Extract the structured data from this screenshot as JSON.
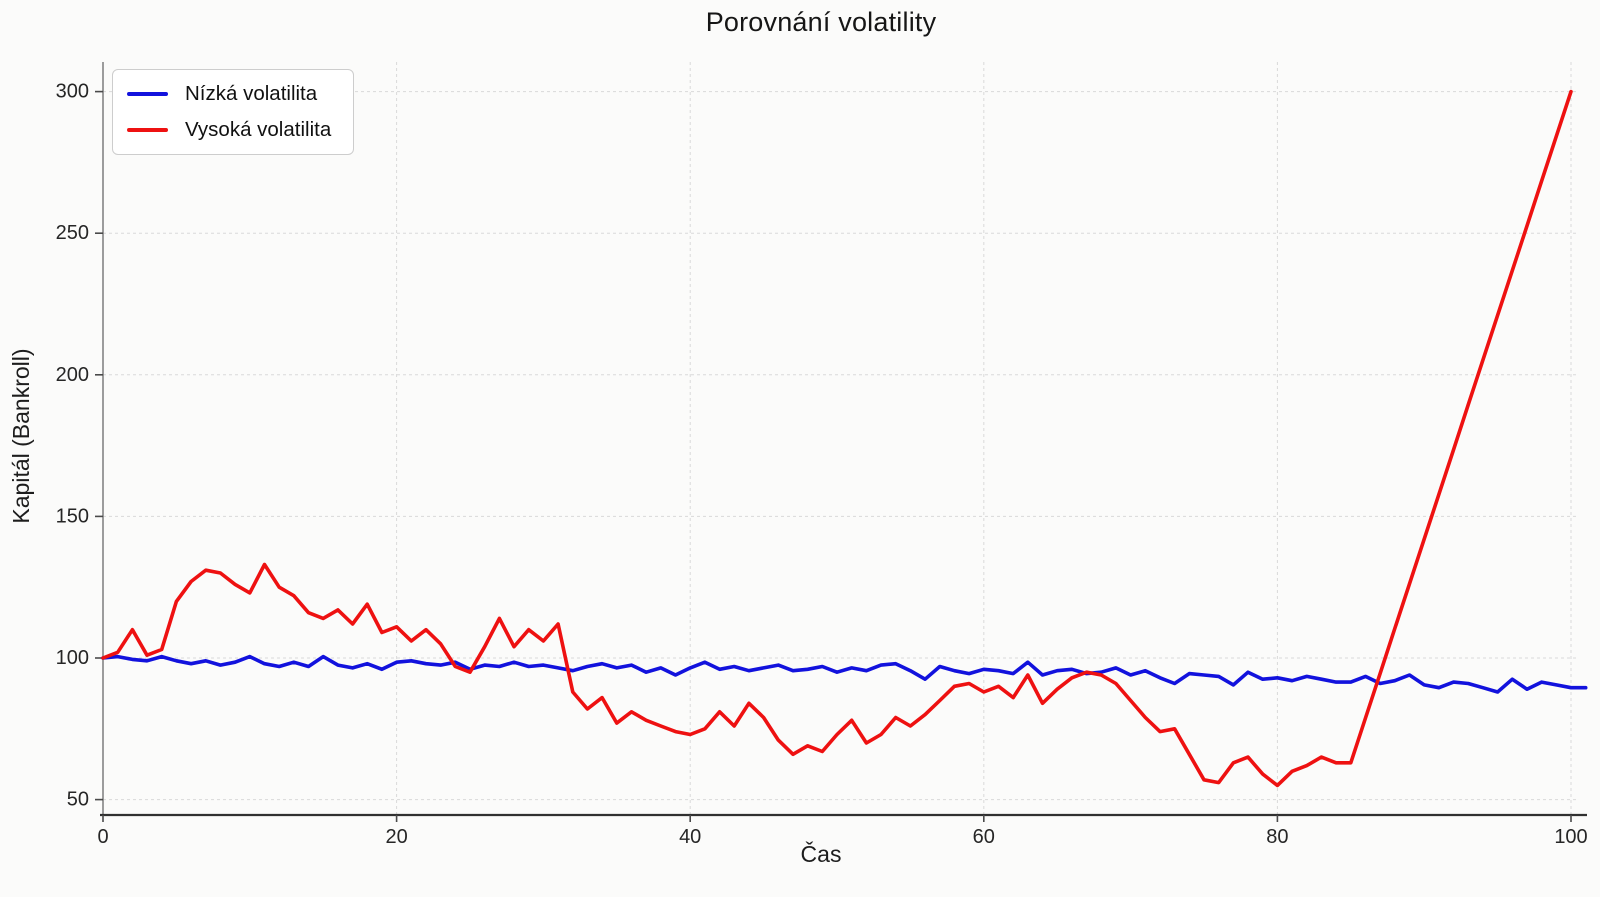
{
  "title": "Porovnání volatility",
  "axes": {
    "x_title": "Čas",
    "y_title": "Kapitál (Bankroll)"
  },
  "legend": {
    "items": [
      {
        "label": "Nízká volatilita",
        "color": "#1212dd"
      },
      {
        "label": "Vysoká volatilita",
        "color": "#ee1111"
      }
    ]
  },
  "colors": {
    "background": "#fbfbfa",
    "gridline": "#d9d9d9",
    "left_spine": "#7d7d7d",
    "bottom_spine": "#303030",
    "tick": "#4a4a4a",
    "tick_label": "#262626",
    "series_low": "#1212dd",
    "series_high": "#ee1111"
  },
  "chart_data": {
    "type": "line",
    "title": "Porovnání volatility",
    "xlabel": "Čas",
    "ylabel": "Kapitál (Bankroll)",
    "xlim": [
      0,
      100
    ],
    "ylim": [
      45,
      311
    ],
    "x_ticks": [
      0,
      20,
      40,
      60,
      80,
      100
    ],
    "y_ticks": [
      50,
      100,
      150,
      200,
      250,
      300
    ],
    "grid": true,
    "grid_style": "dashed",
    "legend_position": "top-left",
    "x_start": 0,
    "x_step": 1,
    "series": [
      {
        "name": "Nízká volatilita",
        "color": "#1212dd",
        "values": [
          100,
          100.5,
          99.5,
          99,
          100.5,
          99,
          98,
          99,
          97.5,
          98.5,
          100.5,
          98,
          97,
          98.5,
          97,
          100.5,
          97.5,
          96.5,
          98,
          96,
          98.5,
          99,
          98,
          97.5,
          98.5,
          96,
          97.5,
          97,
          98.5,
          97,
          97.5,
          96.5,
          95.5,
          97,
          98,
          96.5,
          97.5,
          95,
          96.5,
          94,
          96.5,
          98.5,
          96,
          97,
          95.5,
          96.5,
          97.5,
          95.5,
          96,
          97,
          95,
          96.5,
          95.5,
          97.5,
          98,
          95.5,
          92.5,
          97,
          95.5,
          94.5,
          96,
          95.5,
          94.5,
          98.5,
          94,
          95.5,
          96,
          94.5,
          95,
          96.5,
          94,
          95.5,
          93,
          91,
          94.5,
          94,
          93.5,
          90.5,
          95,
          92.5,
          93,
          92,
          93.5,
          92.5,
          91.5,
          91.5,
          93.5,
          91,
          92,
          94,
          90.5,
          89.5,
          91.5,
          91,
          89.5,
          88,
          92.5,
          89,
          91.5,
          90.5,
          89.5,
          89.5
        ]
      },
      {
        "name": "Vysoká volatilita",
        "color": "#ee1111",
        "values": [
          100,
          102,
          110,
          101,
          103,
          120,
          127,
          131,
          130,
          126,
          123,
          133,
          125,
          122,
          116,
          114,
          117,
          112,
          119,
          109,
          111,
          106,
          110,
          105,
          97,
          95,
          104,
          114,
          104,
          110,
          106,
          112,
          88,
          82,
          86,
          77,
          81,
          78,
          76,
          74,
          73,
          75,
          81,
          76,
          84,
          79,
          71,
          66,
          69,
          67,
          73,
          78,
          70,
          73,
          79,
          76,
          80,
          85,
          90,
          91,
          88,
          90,
          86,
          94,
          84,
          89,
          93,
          95,
          94,
          91,
          85,
          79,
          74,
          75,
          66,
          57,
          56,
          63,
          65,
          59,
          55,
          60,
          62,
          65,
          63,
          63,
          78.8,
          94.6,
          110.4,
          126.2,
          142,
          157.8,
          173.6,
          189.4,
          205.2,
          221,
          236.8,
          252.6,
          268.4,
          284.2,
          300
        ]
      }
    ]
  }
}
